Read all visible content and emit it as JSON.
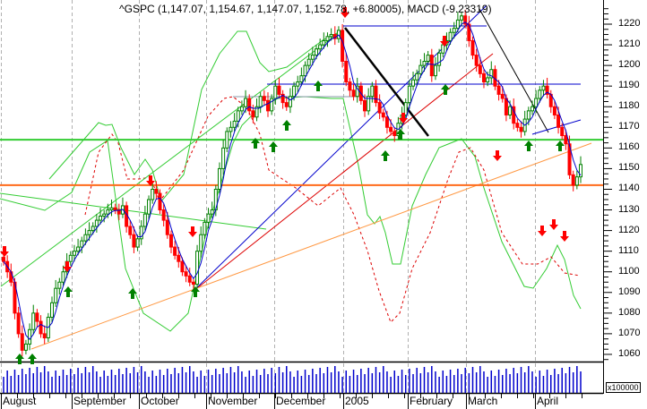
{
  "chart_data": {
    "type": "candlestick",
    "title": "^GSPC (1,147.07, 1,154.67, 1,147.07, 1,152.78, +6.80005), MACD (-9.23319)",
    "symbol": "^GSPC",
    "last_bar": {
      "open": "1,147.07",
      "high": "1,154.67",
      "low": "1,147.07",
      "close": "1,152.78",
      "change": "+6.80005"
    },
    "macd": "-9.23319",
    "y_ticks": [
      1220,
      1210,
      1200,
      1190,
      1180,
      1170,
      1160,
      1150,
      1140,
      1130,
      1120,
      1110,
      1100,
      1090,
      1080,
      1070,
      1060
    ],
    "ylim": [
      1055,
      1228
    ],
    "x_months": [
      "August",
      "September",
      "October",
      "November",
      "December",
      "2005",
      "February",
      "March",
      "April"
    ],
    "volume_unit": "x100000",
    "horizontal_lines": [
      {
        "name": "support-green",
        "value": 1164,
        "color": "#33cc33"
      },
      {
        "name": "support-orange",
        "value": 1142,
        "color": "#ff6a1a"
      },
      {
        "name": "resistance-blue-top",
        "value": 1218,
        "color": "#0000cc"
      },
      {
        "name": "resistance-blue-mid",
        "value": 1191,
        "color": "#0000cc"
      },
      {
        "name": "resistance-gray",
        "value": 1184,
        "color": "#8899aa"
      }
    ],
    "approx_closes": [
      1105,
      1100,
      1095,
      1080,
      1070,
      1062,
      1065,
      1072,
      1080,
      1076,
      1070,
      1068,
      1078,
      1085,
      1092,
      1095,
      1100,
      1105,
      1108,
      1110,
      1112,
      1115,
      1118,
      1120,
      1122,
      1125,
      1127,
      1128,
      1130,
      1131,
      1130,
      1128,
      1132,
      1122,
      1118,
      1112,
      1116,
      1122,
      1128,
      1135,
      1140,
      1138,
      1130,
      1125,
      1118,
      1112,
      1108,
      1105,
      1100,
      1098,
      1095,
      1094,
      1110,
      1118,
      1124,
      1128,
      1130,
      1140,
      1150,
      1160,
      1168,
      1170,
      1173,
      1178,
      1180,
      1184,
      1178,
      1175,
      1180,
      1185,
      1183,
      1178,
      1184,
      1190,
      1186,
      1182,
      1180,
      1185,
      1190,
      1192,
      1195,
      1200,
      1203,
      1205,
      1208,
      1210,
      1212,
      1214,
      1215,
      1213,
      1217,
      1202,
      1192,
      1188,
      1185,
      1190,
      1183,
      1178,
      1185,
      1190,
      1182,
      1177,
      1175,
      1170,
      1168,
      1166,
      1172,
      1176,
      1182,
      1190,
      1193,
      1196,
      1200,
      1202,
      1205,
      1195,
      1200,
      1206,
      1210,
      1212,
      1216,
      1218,
      1222,
      1224,
      1220,
      1212,
      1205,
      1200,
      1196,
      1192,
      1194,
      1198,
      1190,
      1186,
      1184,
      1176,
      1180,
      1172,
      1170,
      1168,
      1174,
      1178,
      1180,
      1184,
      1188,
      1190,
      1186,
      1180,
      1176,
      1170,
      1166,
      1162,
      1147,
      1142,
      1146,
      1152
    ],
    "colors": {
      "up_candle": "#008000",
      "down_candle": "#ff0000",
      "sma": "#0000cc",
      "bollinger": "#33cc33",
      "macd_signal": "#dd0000",
      "volume": "#0000cc",
      "trend_black": "#000000",
      "trend_orange": "#ff9944"
    }
  },
  "axis": {
    "y_labels": [
      "1220",
      "1210",
      "1200",
      "1190",
      "1180",
      "1170",
      "1160",
      "1150",
      "1140",
      "1130",
      "1120",
      "1110",
      "1100",
      "1090",
      "1080",
      "1070",
      "1060"
    ],
    "months": [
      "August",
      "September",
      "October",
      "November",
      "December",
      "2005",
      "February",
      "March",
      "April"
    ],
    "volume_unit": "x100000"
  }
}
